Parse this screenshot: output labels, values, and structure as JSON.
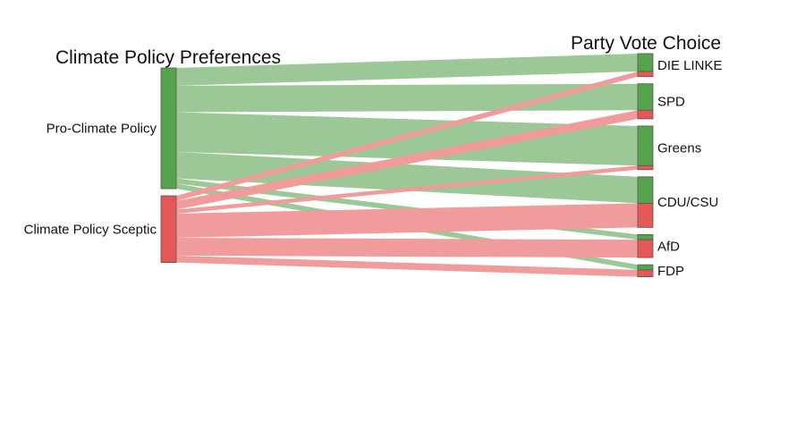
{
  "chart_data": {
    "type": "sankey",
    "source_title": "Climate Policy Preferences",
    "target_title": "Party Vote Choice",
    "sources": [
      {
        "name": "Pro-Climate Policy",
        "color": "#55a44c"
      },
      {
        "name": "Climate Policy Sceptic",
        "color": "#e55858"
      }
    ],
    "targets": [
      "DIE LINKE",
      "SPD",
      "Greens",
      "CDU/CSU",
      "AfD",
      "FDP"
    ],
    "link_colors": {
      "Pro-Climate Policy": "#99c794",
      "Climate Policy Sceptic": "#f09a9a"
    },
    "flows": [
      {
        "source": "Pro-Climate Policy",
        "target": "DIE LINKE",
        "value": 31
      },
      {
        "source": "Pro-Climate Policy",
        "target": "SPD",
        "value": 46
      },
      {
        "source": "Pro-Climate Policy",
        "target": "Greens",
        "value": 69
      },
      {
        "source": "Pro-Climate Policy",
        "target": "CDU/CSU",
        "value": 46
      },
      {
        "source": "Pro-Climate Policy",
        "target": "AfD",
        "value": 9
      },
      {
        "source": "Pro-Climate Policy",
        "target": "FDP",
        "value": 9
      },
      {
        "source": "Climate Policy Sceptic",
        "target": "DIE LINKE",
        "value": 9
      },
      {
        "source": "Climate Policy Sceptic",
        "target": "SPD",
        "value": 15
      },
      {
        "source": "Climate Policy Sceptic",
        "target": "Greens",
        "value": 7
      },
      {
        "source": "Climate Policy Sceptic",
        "target": "CDU/CSU",
        "value": 42
      },
      {
        "source": "Climate Policy Sceptic",
        "target": "AfD",
        "value": 31
      },
      {
        "source": "Climate Policy Sceptic",
        "target": "FDP",
        "value": 12
      }
    ]
  }
}
